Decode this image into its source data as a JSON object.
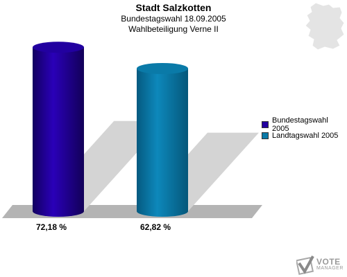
{
  "title": "Stadt Salzkotten",
  "subtitle1": "Bundestagswahl 18.09.2005",
  "subtitle2": "Wahlbeteiligung Verne II",
  "chart_data": {
    "type": "bar",
    "title": "Stadt Salzkotten",
    "subtitle": "Bundestagswahl 18.09.2005 · Wahlbeteiligung Verne II",
    "categories": [
      "Bundestagswahl 2005",
      "Landtagswahl 2005"
    ],
    "values": [
      72.18,
      62.82
    ],
    "value_labels": [
      "72,18 %",
      "62,82 %"
    ],
    "ylim": [
      0,
      100
    ],
    "legend_placement": "right",
    "grid": false,
    "colors": [
      "#2200a0",
      "#0a7aa8"
    ]
  },
  "legend": [
    {
      "label": "Bundestagswahl 2005",
      "color": "#2200a0"
    },
    {
      "label": "Landtagswahl 2005",
      "color": "#0a7aa8"
    }
  ],
  "logo": {
    "line1": "VOTE",
    "line2": "MANAGER",
    "icon": "vote-manager-logo-icon"
  },
  "map_icon": "germany-map-icon"
}
